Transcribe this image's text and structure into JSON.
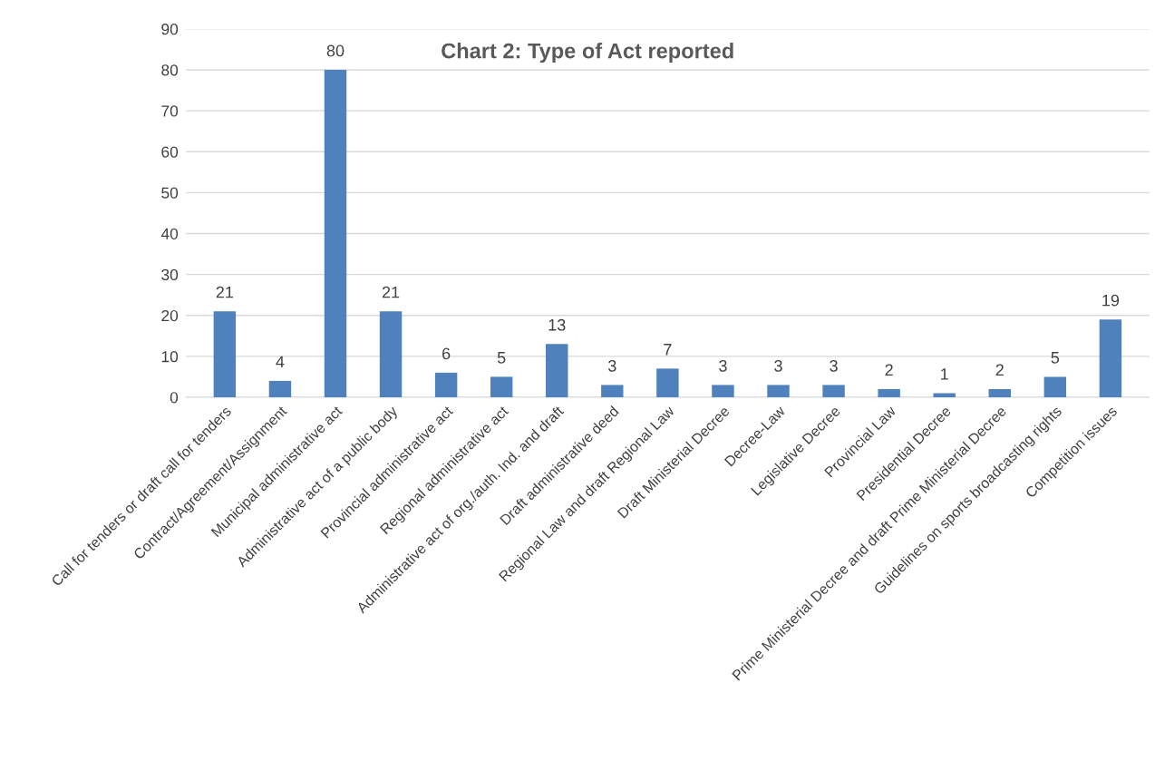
{
  "chart_data": {
    "type": "bar",
    "title": "Chart 2: Type of Act reported",
    "categories": [
      "Call for tenders or draft call for tenders",
      "Contract/Agreement/Assignment",
      "Municipal administrative act",
      "Administrative act of a public body",
      "Provincial administrative act",
      "Regional administrative act",
      "Administrative act of org./auth. Ind. and draft",
      "Draft administrative deed",
      "Regional Law and draft Regional Law",
      "Draft Ministerial Decree",
      "Decree-Law",
      "Legislative Decree",
      "Provincial Law",
      "Presidential Decree",
      "Prime Ministerial Decree and draft Prime Ministerial Decree",
      "Guidelines on sports broadcasting rights",
      "Competition issues"
    ],
    "values": [
      21,
      4,
      80,
      21,
      6,
      5,
      13,
      3,
      7,
      3,
      3,
      3,
      2,
      1,
      2,
      5,
      19
    ],
    "color": "#4f81bd",
    "ylim": [
      0,
      90
    ],
    "yticks": [
      0,
      10,
      20,
      30,
      40,
      50,
      60,
      70,
      80,
      90
    ],
    "grid": "y",
    "data_labels": true
  }
}
